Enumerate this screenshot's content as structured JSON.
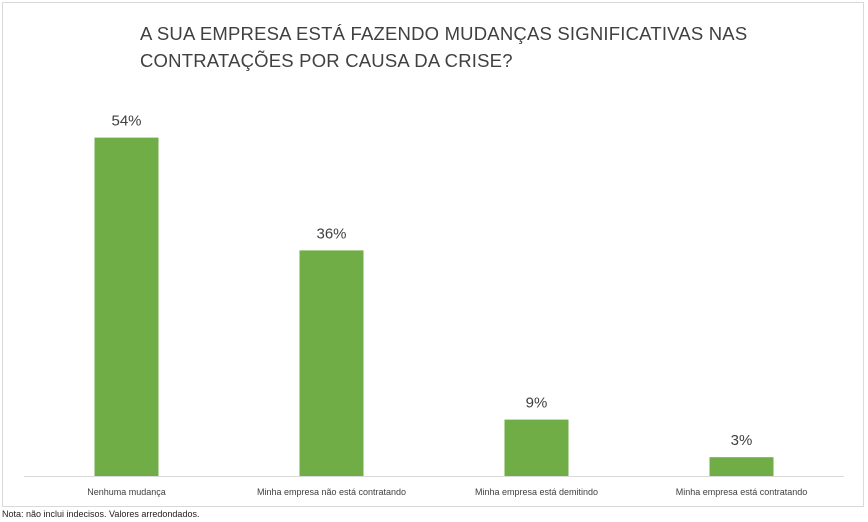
{
  "chart_data": {
    "type": "bar",
    "title_lines": [
      "A SUA EMPRESA ESTÁ FAZENDO MUDANÇAS SIGNIFICATIVAS NAS",
      "CONTRATAÇÕES POR CAUSA DA CRISE?"
    ],
    "categories": [
      "Nenhuma mudança",
      "Minha empresa não está contratando",
      "Minha empresa está demitindo",
      "Minha empresa está contratando"
    ],
    "values": [
      54,
      36,
      9,
      3
    ],
    "data_labels": [
      "54%",
      "36%",
      "9%",
      "3%"
    ],
    "ylim": [
      0,
      60
    ],
    "grid": false,
    "bar_color": "#70ad47"
  },
  "note": "Nota: não inclui indecisos. Valores arredondados."
}
